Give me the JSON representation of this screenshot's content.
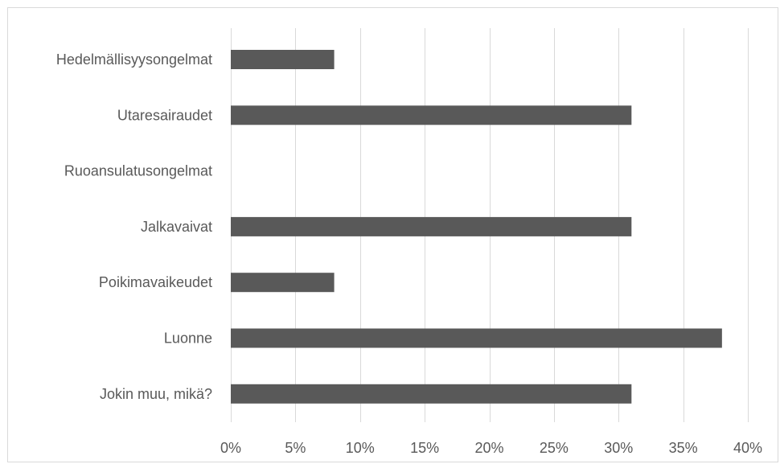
{
  "chart_data": {
    "type": "bar",
    "orientation": "horizontal",
    "categories": [
      "Hedelmällisyysongelmat",
      "Utaresairaudet",
      "Ruoansulatusongelmat",
      "Jalkavaivat",
      "Poikimavaikeudet",
      "Luonne",
      "Jokin muu, mikä?"
    ],
    "values": [
      8,
      31,
      0,
      31,
      8,
      38,
      31
    ],
    "value_unit": "%",
    "xlim": [
      0,
      40
    ],
    "x_ticks": [
      0,
      5,
      10,
      15,
      20,
      25,
      30,
      35,
      40
    ],
    "x_tick_labels": [
      "0%",
      "5%",
      "10%",
      "15%",
      "20%",
      "25%",
      "30%",
      "35%",
      "40%"
    ],
    "grid": "vertical",
    "legend": "none",
    "bar_color": "#595959",
    "grid_color": "#d9d9d9"
  }
}
